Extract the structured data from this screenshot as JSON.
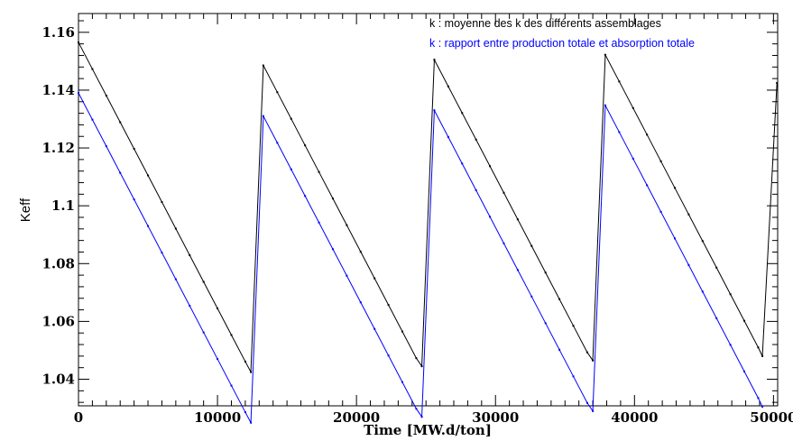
{
  "chart_data": {
    "type": "line",
    "xlabel": "Time [MW.d/ton]",
    "ylabel": "Keff",
    "xlim": [
      0,
      50300
    ],
    "ylim": [
      1.0308,
      1.1665
    ],
    "x_ticks": [
      0,
      10000,
      20000,
      30000,
      40000,
      50000
    ],
    "x_tick_labels": [
      "0",
      "10000",
      "20000",
      "30000",
      "40000",
      "50000"
    ],
    "y_ticks": [
      1.04,
      1.06,
      1.08,
      1.1,
      1.12,
      1.14,
      1.16
    ],
    "y_tick_labels": [
      "1.04",
      "1.06",
      "1.08",
      "1.1",
      "1.12",
      "1.14",
      "1.16"
    ],
    "grid": false,
    "legend_position": "top-right",
    "series": [
      {
        "name": "k : moyenne des k des différents assemblages",
        "color": "#000000",
        "x": [
          0,
          1000,
          2000,
          3000,
          4000,
          5000,
          6000,
          7000,
          8000,
          9000,
          10000,
          11000,
          12000,
          12400,
          13300,
          14300,
          15300,
          16300,
          17300,
          18300,
          19300,
          20300,
          21300,
          22300,
          23300,
          24300,
          24700,
          25600,
          26600,
          27600,
          28600,
          29600,
          30600,
          31600,
          32600,
          33600,
          34600,
          35600,
          36600,
          37000,
          37900,
          38900,
          39900,
          40900,
          41900,
          42900,
          43900,
          44900,
          45900,
          46900,
          47900,
          48900,
          49200,
          50250
        ],
        "y": [
          1.1565,
          1.1473,
          1.1381,
          1.1289,
          1.1197,
          1.1105,
          1.1013,
          1.0921,
          1.0829,
          1.0737,
          1.0645,
          1.0553,
          1.0461,
          1.0425,
          1.1485,
          1.1393,
          1.1301,
          1.1209,
          1.1117,
          1.1025,
          1.0933,
          1.0841,
          1.0749,
          1.0657,
          1.0565,
          1.0473,
          1.0445,
          1.1505,
          1.1413,
          1.1321,
          1.1229,
          1.1137,
          1.1045,
          1.0953,
          1.0861,
          1.0769,
          1.0677,
          1.0585,
          1.0493,
          1.0465,
          1.1522,
          1.143,
          1.1338,
          1.1246,
          1.1154,
          1.1062,
          1.097,
          1.0878,
          1.0786,
          1.0694,
          1.0602,
          1.051,
          1.048,
          1.1425
        ]
      },
      {
        "name": "k : rapport entre production totale et absorption totale",
        "color": "#0000ff",
        "x": [
          0,
          1000,
          2000,
          3000,
          4000,
          5000,
          6000,
          7000,
          8000,
          9000,
          10000,
          11000,
          12000,
          12400,
          13300,
          14300,
          15300,
          16300,
          17300,
          18300,
          19300,
          20300,
          21300,
          22300,
          23300,
          24300,
          24700,
          25600,
          26600,
          27600,
          28600,
          29600,
          30600,
          31600,
          32600,
          33600,
          34600,
          35600,
          36600,
          37000,
          37900,
          38900,
          39900,
          40900,
          41900,
          42900,
          43900,
          44900,
          45900,
          46900,
          47900,
          48900,
          49200
        ],
        "y": [
          1.139,
          1.1298,
          1.1206,
          1.1114,
          1.1022,
          1.093,
          1.0838,
          1.0746,
          1.0654,
          1.0562,
          1.047,
          1.0378,
          1.0286,
          1.025,
          1.131,
          1.1218,
          1.1126,
          1.1034,
          1.0942,
          1.085,
          1.0758,
          1.0666,
          1.0574,
          1.0482,
          1.039,
          1.0298,
          1.027,
          1.133,
          1.1238,
          1.1146,
          1.1054,
          1.0962,
          1.087,
          1.0778,
          1.0686,
          1.0594,
          1.0502,
          1.041,
          1.0318,
          1.029,
          1.1347,
          1.1255,
          1.1163,
          1.1071,
          1.0979,
          1.0887,
          1.0795,
          1.0703,
          1.0611,
          1.0519,
          1.0427,
          1.0335,
          1.0305
        ]
      }
    ]
  }
}
